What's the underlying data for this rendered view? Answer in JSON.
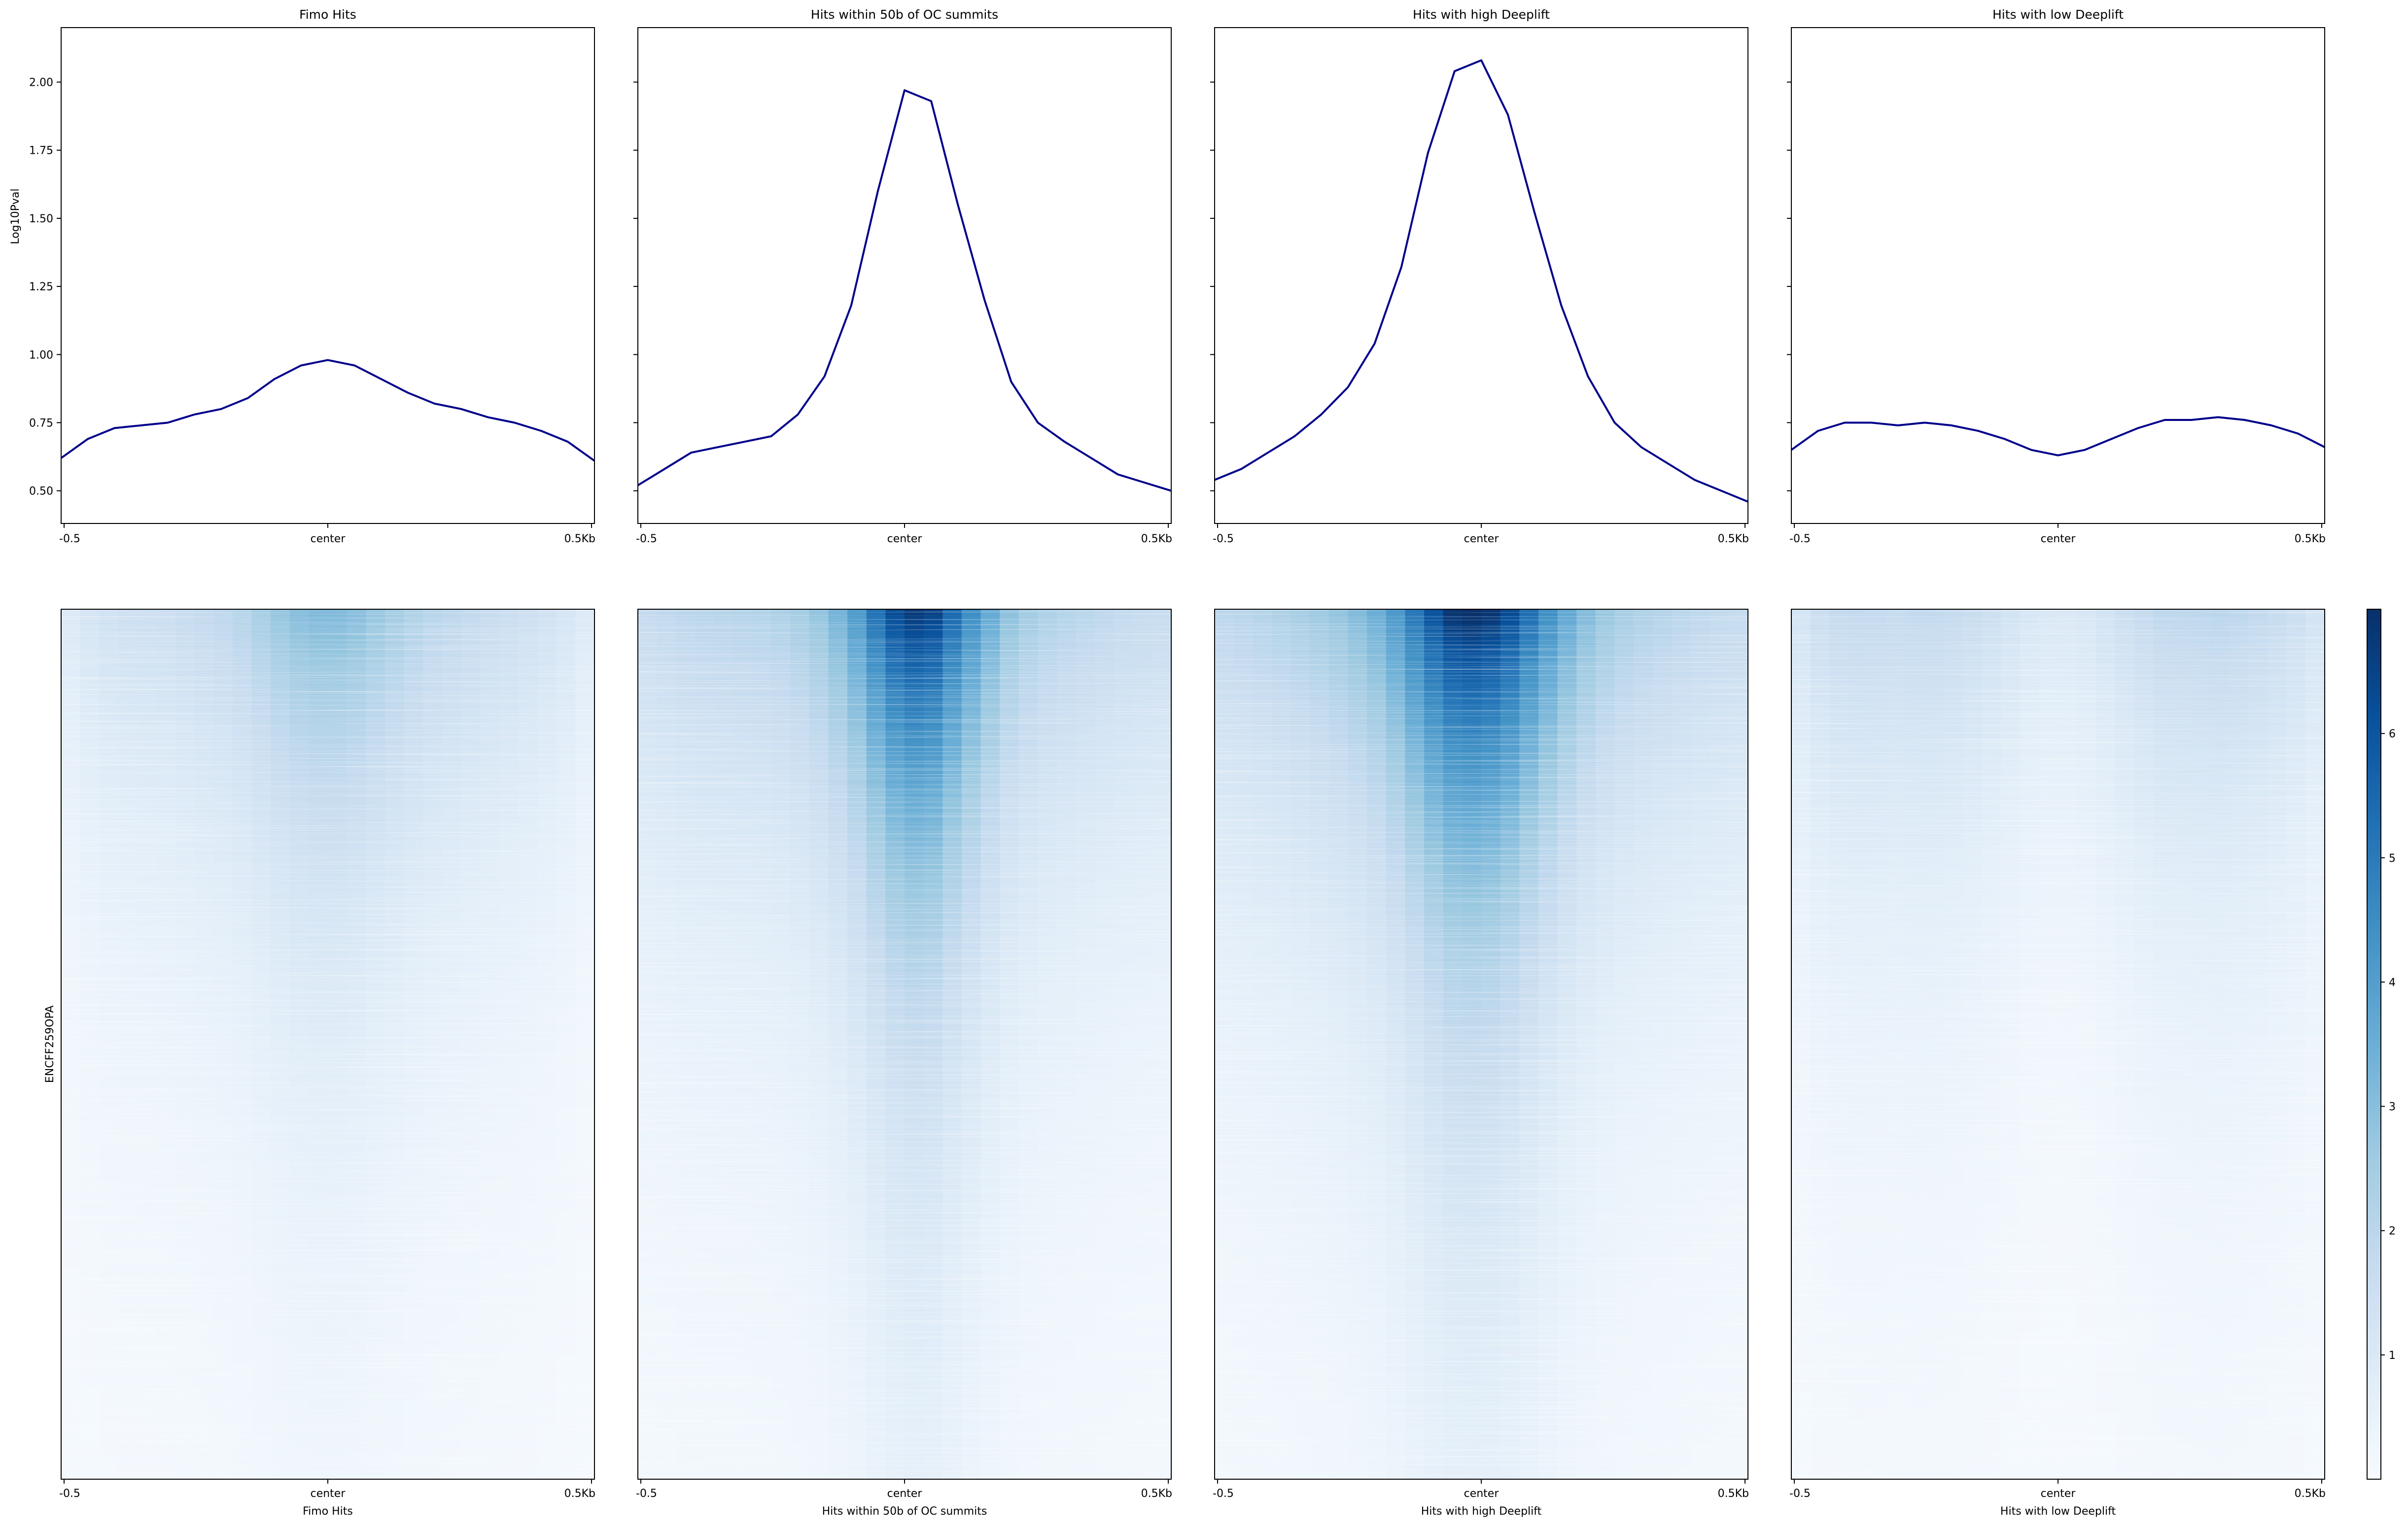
{
  "chart_data": {
    "type": "profile_heatmap",
    "profile": {
      "ylabel": "Log10Pval",
      "ylim": [
        0.38,
        2.2
      ],
      "yticks": [
        0.5,
        0.75,
        1.0,
        1.25,
        1.5,
        1.75,
        2.0
      ],
      "ytick_labels": [
        "0.50",
        "0.75",
        "1.00",
        "1.25",
        "1.50",
        "1.75",
        "2.00"
      ],
      "line_color": "#00008b",
      "x": [
        0.0,
        0.05,
        0.1,
        0.15,
        0.2,
        0.25,
        0.3,
        0.35,
        0.4,
        0.45,
        0.5,
        0.55,
        0.6,
        0.65,
        0.7,
        0.75,
        0.8,
        0.85,
        0.9,
        0.95,
        1.0
      ]
    },
    "xtick_labels": [
      "-0.5",
      "center",
      "0.5Kb"
    ],
    "heatmap": {
      "ylabel": "ENCFF259OPA",
      "colormap": "Blues",
      "colorbar_range": [
        0,
        7
      ],
      "colorbar_ticks": [
        "1",
        "2",
        "3",
        "4",
        "5",
        "6"
      ],
      "colorbar_tick_values": [
        1,
        2,
        3,
        4,
        5,
        6
      ]
    },
    "panels": [
      {
        "title": "Fimo Hits",
        "xlabel": "Fimo Hits",
        "values": [
          0.62,
          0.69,
          0.73,
          0.74,
          0.75,
          0.78,
          0.8,
          0.84,
          0.91,
          0.96,
          0.98,
          0.96,
          0.91,
          0.86,
          0.82,
          0.8,
          0.77,
          0.75,
          0.72,
          0.68,
          0.61
        ],
        "intensity": 0.45
      },
      {
        "title": "Hits within 50b of OC summits",
        "xlabel": "Hits within 50b of OC summits",
        "values": [
          0.52,
          0.58,
          0.64,
          0.66,
          0.68,
          0.7,
          0.78,
          0.92,
          1.18,
          1.6,
          1.97,
          1.93,
          1.55,
          1.2,
          0.9,
          0.75,
          0.68,
          0.62,
          0.56,
          0.53,
          0.5
        ],
        "intensity": 0.95
      },
      {
        "title": "Hits with high Deeplift",
        "xlabel": "Hits with high Deeplift",
        "values": [
          0.54,
          0.58,
          0.64,
          0.7,
          0.78,
          0.88,
          1.04,
          1.32,
          1.74,
          2.04,
          2.08,
          1.88,
          1.52,
          1.18,
          0.92,
          0.75,
          0.66,
          0.6,
          0.54,
          0.5,
          0.46
        ],
        "intensity": 1.0
      },
      {
        "title": "Hits with low Deeplift",
        "xlabel": "Hits with low Deeplift",
        "values": [
          0.65,
          0.72,
          0.75,
          0.75,
          0.74,
          0.75,
          0.74,
          0.72,
          0.69,
          0.65,
          0.63,
          0.65,
          0.69,
          0.73,
          0.76,
          0.76,
          0.77,
          0.76,
          0.74,
          0.71,
          0.66
        ],
        "intensity": 0.55
      }
    ]
  }
}
